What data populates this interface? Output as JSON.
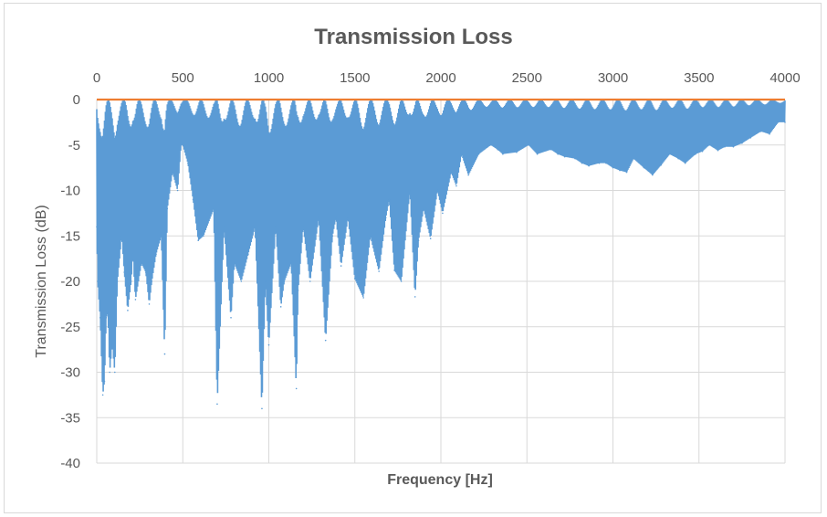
{
  "chart_data": {
    "type": "line",
    "title": "Transmission Loss",
    "xlabel": "Frequency [Hz]",
    "ylabel": "Transmission Loss (dB)",
    "xlim": [
      0,
      4000
    ],
    "ylim": [
      -40,
      0
    ],
    "x_ticks": [
      "0",
      "500",
      "1000",
      "1500",
      "2000",
      "2500",
      "3000",
      "3500",
      "4000"
    ],
    "y_ticks": [
      "0",
      "-5",
      "-10",
      "-15",
      "-20",
      "-25",
      "-30",
      "-35",
      "-40"
    ],
    "x_axis_position": "top",
    "grid": true,
    "colors": {
      "series": "#5b9bd5",
      "reference": "#ed7d31",
      "grid": "#d9d9d9",
      "text": "#595959"
    },
    "series": [
      {
        "x": [
          0,
          5,
          20,
          35,
          45,
          55,
          65,
          75,
          90,
          105,
          120,
          145,
          160,
          180,
          200,
          210,
          225,
          260,
          285,
          305,
          320,
          345,
          375,
          395,
          410,
          440,
          470,
          490,
          500,
          530,
          560,
          590,
          620,
          680,
          700,
          740,
          780,
          800,
          840,
          880,
          920,
          960,
          980,
          1000,
          1040,
          1070,
          1090,
          1130,
          1160,
          1170,
          1200,
          1240,
          1290,
          1330,
          1370,
          1390,
          1420,
          1460,
          1500,
          1550,
          1590,
          1640,
          1680,
          1700,
          1730,
          1770,
          1820,
          1850,
          1870,
          1900,
          1940,
          1980,
          2010,
          2060,
          2090,
          2120,
          2160,
          2220,
          2290,
          2330,
          2360,
          2440,
          2510,
          2560,
          2640,
          2680,
          2720,
          2780,
          2820,
          2860,
          2920,
          2960,
          3000,
          3040,
          3080,
          3120,
          3180,
          3230,
          3280,
          3330,
          3380,
          3420,
          3480,
          3520,
          3560,
          3610,
          3650,
          3700,
          3750,
          3800,
          3860,
          3910,
          3960,
          4000
        ],
        "y": [
          -14,
          -20,
          -24,
          -32.5,
          -31,
          -24,
          -23.5,
          -30,
          -27,
          -30,
          -20,
          -15,
          -19,
          -23.2,
          -20,
          -17,
          -22,
          -18,
          -19,
          -22.5,
          -20,
          -17,
          -15,
          -28,
          -12,
          -8,
          -10,
          -5,
          -5,
          -7,
          -11,
          -15.5,
          -15,
          -12,
          -33.5,
          -14,
          -24,
          -18,
          -20,
          -17,
          -14,
          -34,
          -20,
          -27,
          -14,
          -22.8,
          -20,
          -18,
          -31.8,
          -21,
          -14,
          -20,
          -13,
          -26.5,
          -15,
          -13,
          -18.3,
          -13,
          -19.7,
          -21.8,
          -15,
          -18.9,
          -13,
          -11,
          -18.8,
          -20,
          -10,
          -21.7,
          -15.5,
          -12,
          -15.3,
          -10,
          -12.5,
          -8,
          -9.5,
          -6,
          -8.3,
          -6,
          -5,
          -5.5,
          -6,
          -5.8,
          -5,
          -6,
          -5.5,
          -6,
          -6.3,
          -6.5,
          -7,
          -7.3,
          -7,
          -7,
          -7.5,
          -7.8,
          -8,
          -6.5,
          -7.5,
          -8.3,
          -7.2,
          -6,
          -6.5,
          -7,
          -6,
          -5.7,
          -5,
          -5.6,
          -5.2,
          -5.2,
          -4.8,
          -4.2,
          -3.5,
          -3.8,
          -2.5,
          -2.5
        ]
      },
      {
        "x": [
          0,
          4000
        ],
        "y": [
          0,
          0
        ]
      }
    ]
  }
}
